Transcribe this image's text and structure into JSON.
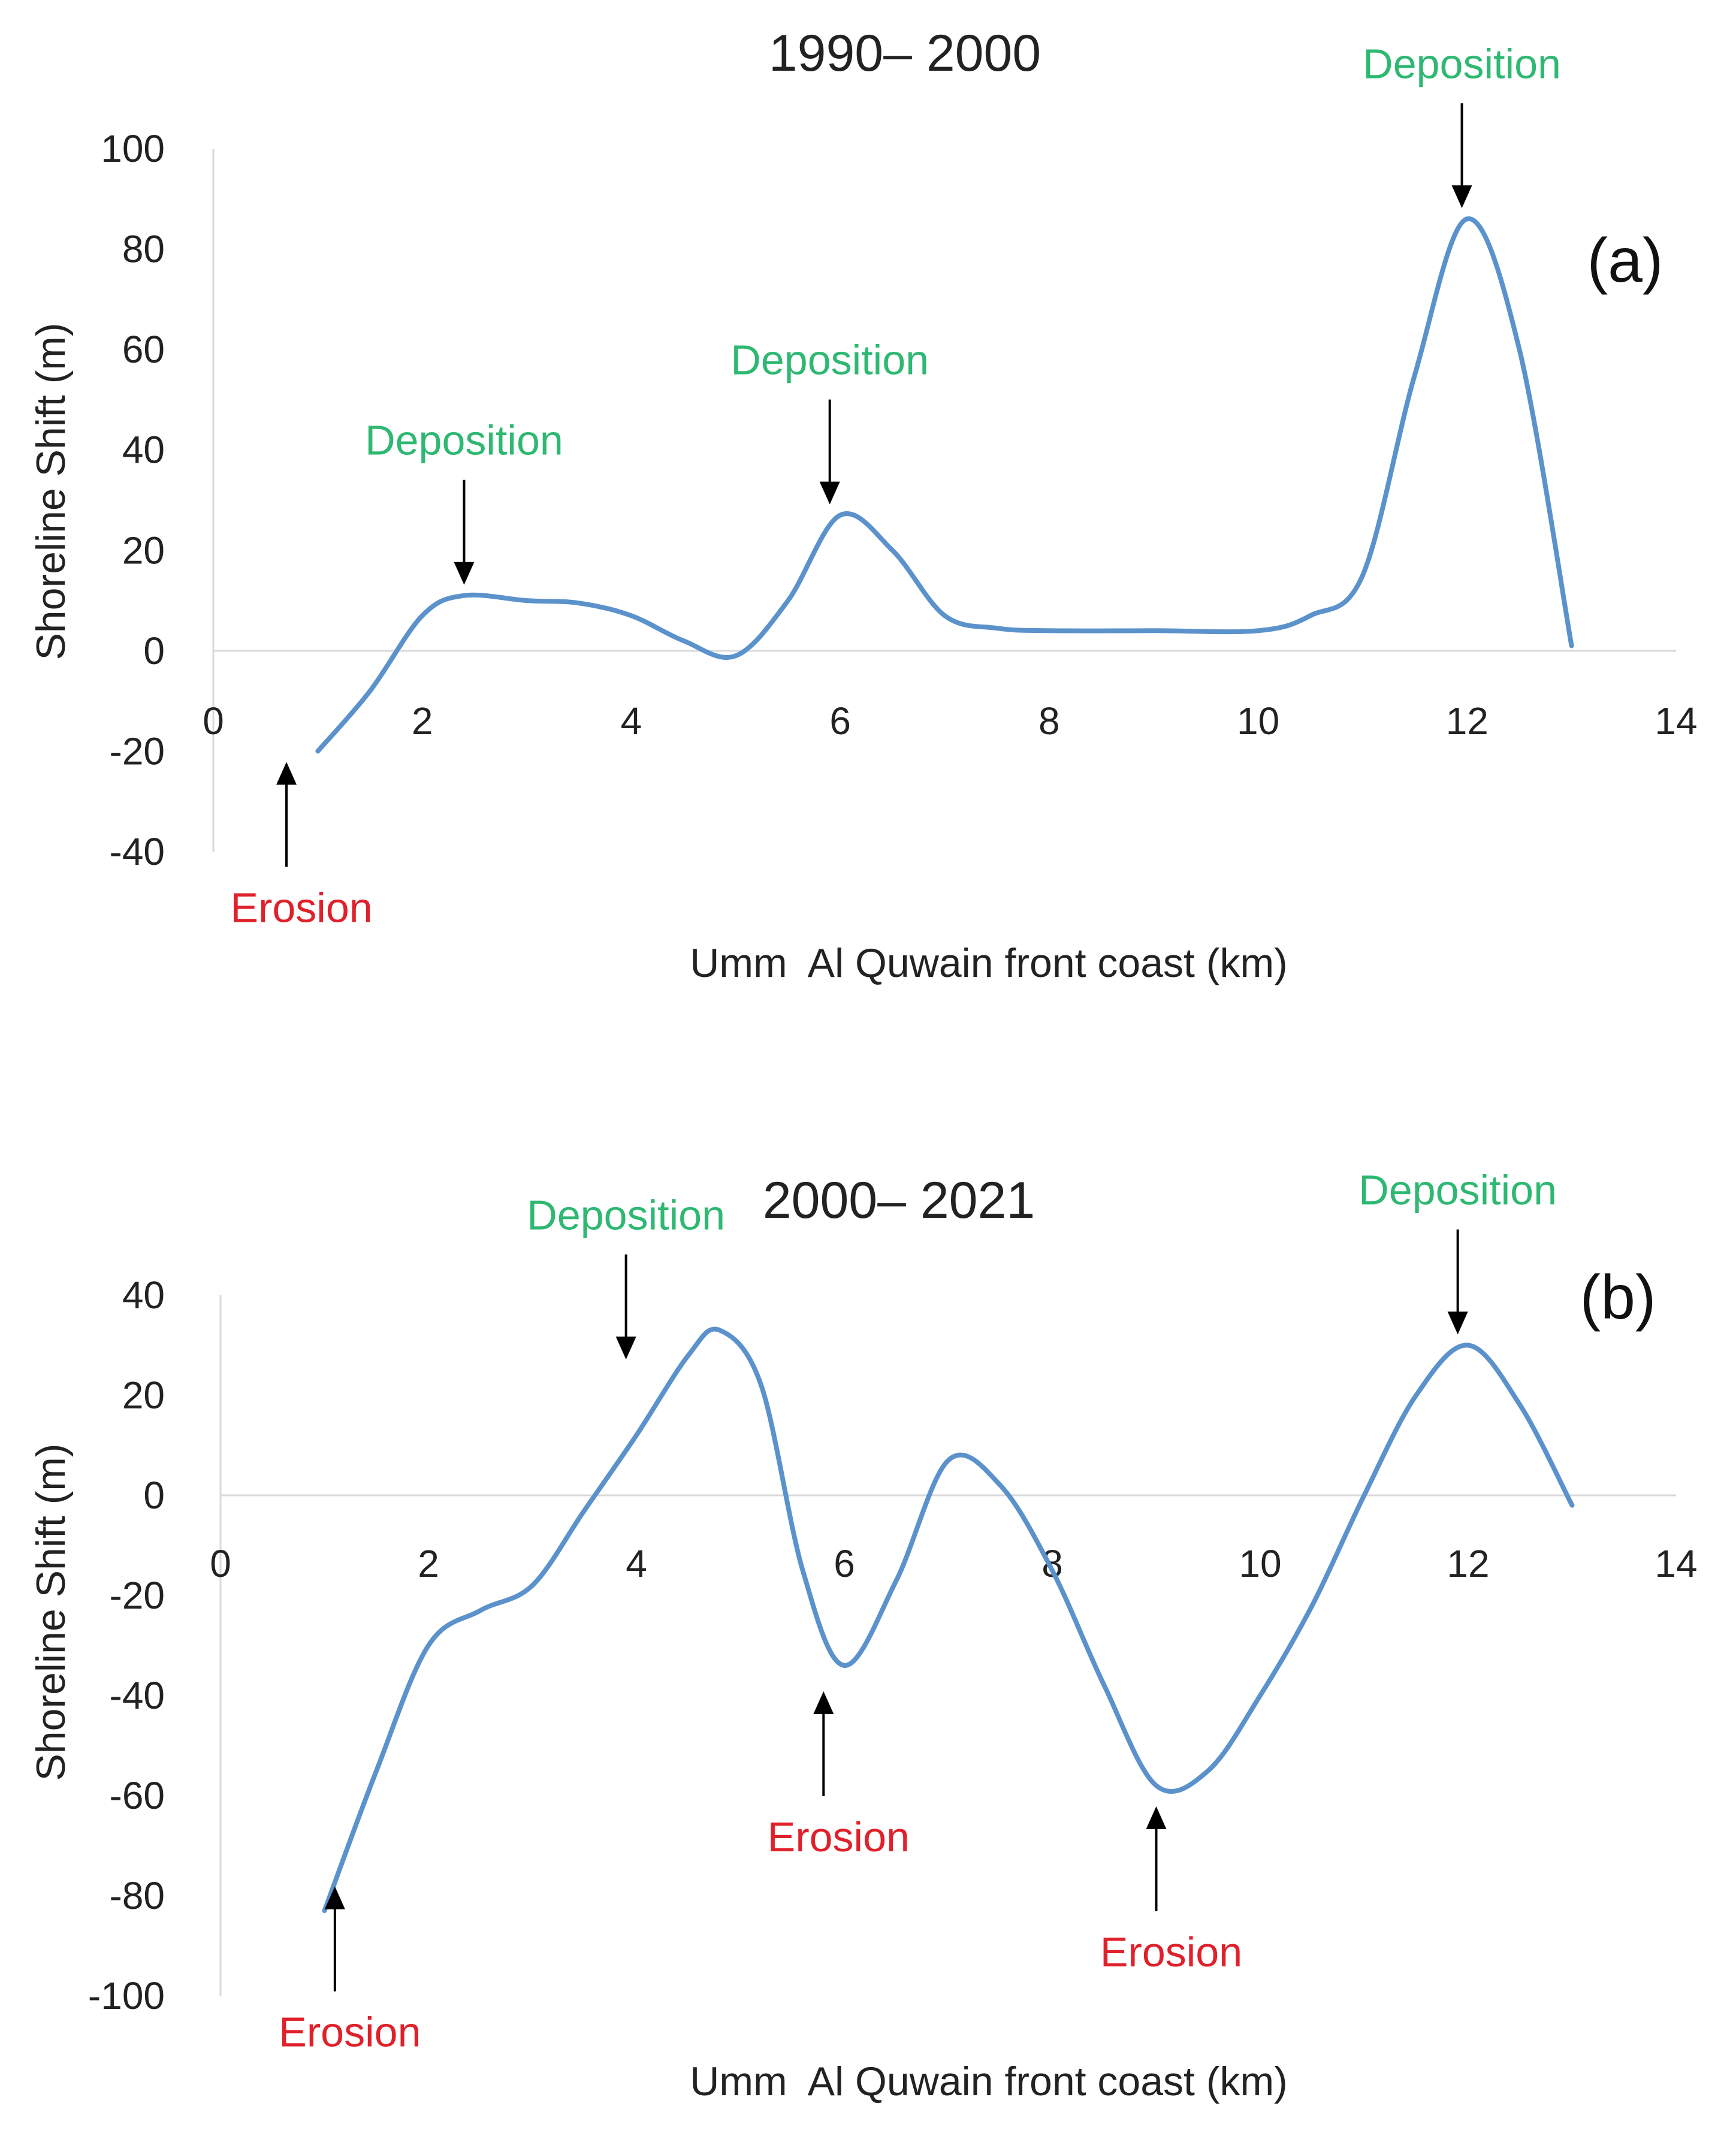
{
  "chart_data": [
    {
      "type": "line",
      "title": "1990– 2000",
      "panel_label": "(a)",
      "xlabel": "Umm  Al Quwain front coast (km)",
      "ylabel": "Shoreline Shift (m)",
      "xlim": [
        0,
        14
      ],
      "ylim": [
        -40,
        100
      ],
      "xticks": [
        0,
        2,
        4,
        6,
        8,
        10,
        12,
        14
      ],
      "yticks": [
        -40,
        -20,
        0,
        20,
        40,
        60,
        80,
        100
      ],
      "series": [
        {
          "name": "Shoreline Shift",
          "color": "#5b92cc",
          "x": [
            1,
            1.5,
            2,
            2.4,
            3,
            3.5,
            4,
            4.5,
            5,
            5.5,
            6,
            6.5,
            7,
            7.5,
            8,
            9,
            10,
            10.5,
            11,
            11.5,
            12,
            12.5,
            13
          ],
          "y": [
            -20,
            -8,
            7,
            11,
            10,
            9.5,
            7,
            2,
            -1,
            10,
            27,
            20,
            7,
            4.5,
            4,
            4,
            4,
            7,
            15,
            55,
            86,
            60,
            1
          ]
        }
      ],
      "annotations": [
        {
          "text": "Deposition",
          "kind": "deposition",
          "x": 2.4,
          "y": 11
        },
        {
          "text": "Deposition",
          "kind": "deposition",
          "x": 5.9,
          "y": 27
        },
        {
          "text": "Deposition",
          "kind": "deposition",
          "x": 11.95,
          "y": 86
        },
        {
          "text": "Erosion",
          "kind": "erosion",
          "x": 0.7,
          "y": -20
        }
      ]
    },
    {
      "type": "line",
      "title": "2000– 2021",
      "panel_label": "(b)",
      "xlabel": "Umm  Al Quwain front coast (km)",
      "ylabel": "Shoreline Shift (m)",
      "xlim": [
        0,
        14
      ],
      "ylim": [
        -100,
        40
      ],
      "xticks": [
        0,
        2,
        4,
        6,
        8,
        10,
        12,
        14
      ],
      "yticks": [
        -100,
        -80,
        -60,
        -40,
        -20,
        0,
        20,
        40
      ],
      "series": [
        {
          "name": "Shoreline Shift",
          "color": "#5b92cc",
          "x": [
            1,
            1.5,
            2,
            2.5,
            3,
            3.5,
            4,
            4.5,
            4.8,
            5.2,
            5.6,
            6,
            6.5,
            7,
            7.5,
            8,
            8.5,
            9,
            9.5,
            10,
            10.5,
            11,
            11.5,
            12,
            12.5,
            13
          ],
          "y": [
            -83,
            -55,
            -30,
            -23,
            -18,
            -3,
            12,
            28,
            33,
            22,
            -15,
            -34,
            -17,
            7,
            2,
            -15,
            -38,
            -58,
            -55,
            -40,
            -22,
            0,
            20,
            30,
            18,
            -2
          ]
        }
      ],
      "annotations": [
        {
          "text": "Deposition",
          "kind": "deposition",
          "x": 3.9,
          "y": 25
        },
        {
          "text": "Deposition",
          "kind": "deposition",
          "x": 11.9,
          "y": 30
        },
        {
          "text": "Erosion",
          "kind": "erosion",
          "x": 1.1,
          "y": -76
        },
        {
          "text": "Erosion",
          "kind": "erosion",
          "x": 5.8,
          "y": -37
        },
        {
          "text": "Erosion",
          "kind": "erosion",
          "x": 9.0,
          "y": -60
        }
      ]
    }
  ]
}
